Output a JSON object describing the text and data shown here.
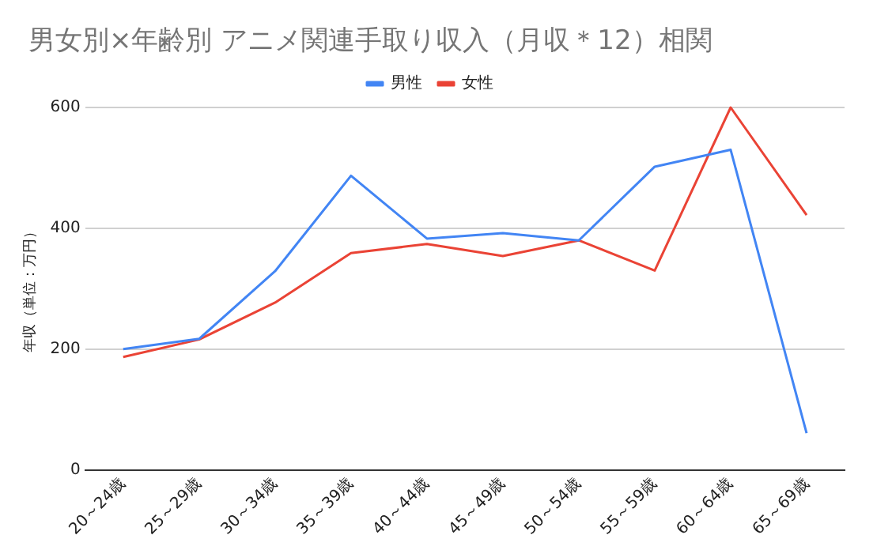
{
  "chart_data": {
    "type": "line",
    "title": "男女別×年齢別 アニメ関連手取り収入（月収＊12）相関",
    "ylabel": "年収（単位：万円）",
    "categories": [
      "20～24歳",
      "25～29歳",
      "30～34歳",
      "35～39歳",
      "40～44歳",
      "45～49歳",
      "50～54歳",
      "55～59歳",
      "60～64歳",
      "65～69歳"
    ],
    "series": [
      {
        "name": "男性",
        "color": "#4285f4",
        "values": [
          200,
          217,
          329,
          487,
          383,
          392,
          380,
          502,
          530,
          61
        ]
      },
      {
        "name": "女性",
        "color": "#ea4335",
        "values": [
          187,
          216,
          277,
          359,
          374,
          354,
          380,
          330,
          600,
          422
        ]
      }
    ],
    "ylim": [
      0,
      600
    ],
    "yticks": [
      0,
      200,
      400,
      600
    ],
    "grid": "y",
    "legend": "top",
    "marker": "none"
  }
}
